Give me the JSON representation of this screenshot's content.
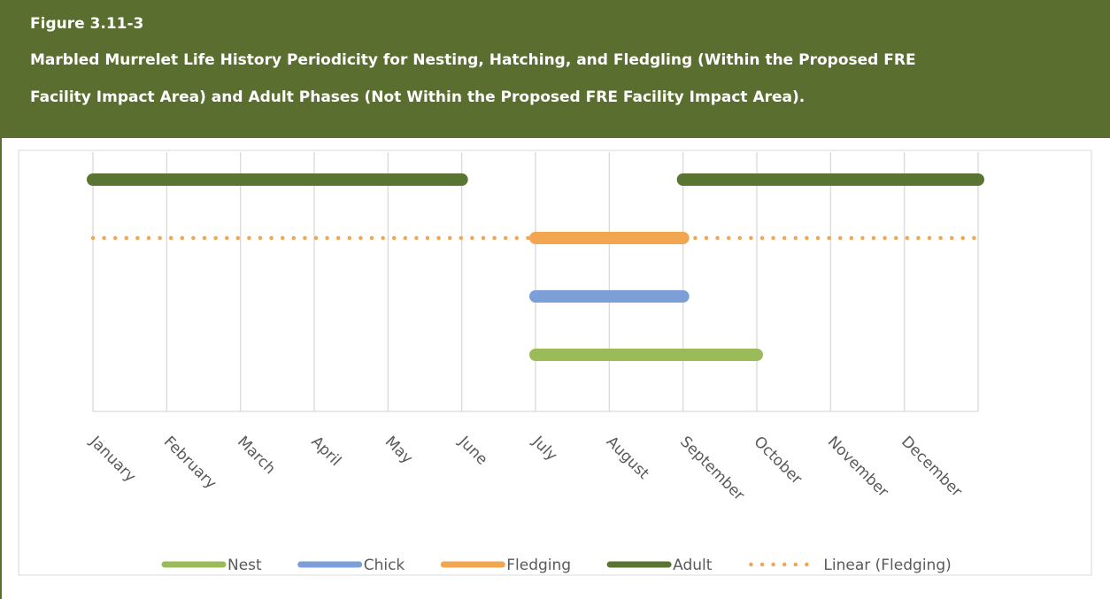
{
  "chart_data": {
    "type": "gantt",
    "figure_number": "Figure 3.11-3",
    "title": [
      "Marbled Murrelet Life History Periodicity for Nesting, Hatching, and Fledgling (Within the Proposed FRE",
      "Facility Impact Area) and Adult Phases (Not Within the Proposed FRE Facility Impact Area)."
    ],
    "xlim": [
      0,
      12
    ],
    "xticks": [
      {
        "value": 0,
        "label": "January"
      },
      {
        "value": 1,
        "label": "February"
      },
      {
        "value": 2,
        "label": "March"
      },
      {
        "value": 3,
        "label": "April"
      },
      {
        "value": 4,
        "label": "May"
      },
      {
        "value": 5,
        "label": "June"
      },
      {
        "value": 6,
        "label": "July"
      },
      {
        "value": 7,
        "label": "August"
      },
      {
        "value": 8,
        "label": "September"
      },
      {
        "value": 9,
        "label": "October"
      },
      {
        "value": 10,
        "label": "November"
      },
      {
        "value": 11,
        "label": "December"
      }
    ],
    "grid": true,
    "series": [
      {
        "name": "Nest",
        "color": "#9bbb59",
        "values": [
          [
            6,
            9
          ]
        ]
      },
      {
        "name": "Chick",
        "color": "#7b9fd6",
        "values": [
          [
            6,
            8
          ]
        ]
      },
      {
        "name": "Fledging",
        "color": "#f2a650",
        "values": [
          [
            6,
            8
          ]
        ]
      },
      {
        "name": "Adult",
        "color": "#5a7431",
        "values": [
          [
            0,
            5
          ],
          [
            8,
            12
          ]
        ]
      }
    ],
    "trendline": {
      "name": "Linear (Fledging)",
      "color": "#f2a650",
      "series": 2,
      "values": [
        0,
        12
      ]
    },
    "legend": "bottom"
  }
}
